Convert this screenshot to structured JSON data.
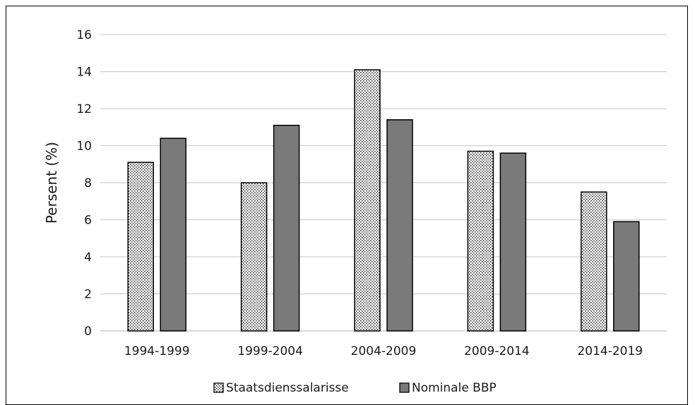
{
  "chart_data": {
    "type": "bar",
    "title": "",
    "xlabel": "",
    "ylabel": "Persent (%)",
    "ylim": [
      0,
      16
    ],
    "yticks": [
      "0",
      "2",
      "4",
      "6",
      "8",
      "10",
      "12",
      "14",
      "16"
    ],
    "grid": true,
    "legend_position": "bottom",
    "categories": [
      "1994-1999",
      "1999-2004",
      "2004-2009",
      "2009-2014",
      "2014-2019"
    ],
    "series": [
      {
        "name": "Staatsdienssalarisse",
        "values": [
          9.1,
          8.0,
          14.1,
          9.7,
          7.5
        ],
        "pattern": "dotted",
        "color": "#ffffff"
      },
      {
        "name": "Nominale BBP",
        "values": [
          10.4,
          11.1,
          11.4,
          9.6,
          5.9
        ],
        "pattern": "solid",
        "color": "#7a7a7a"
      }
    ]
  }
}
